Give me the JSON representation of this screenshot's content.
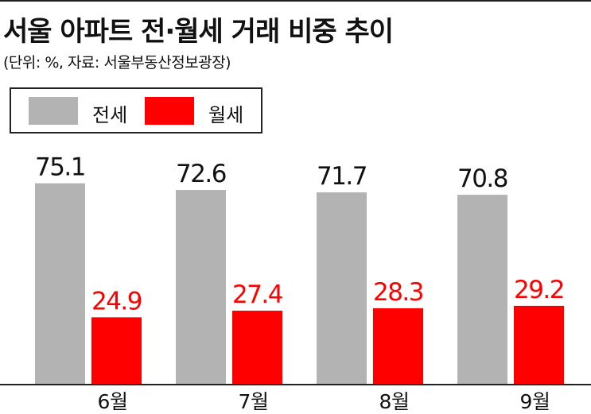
{
  "title": "서울 아파트 전·월세 거래 비중 추이",
  "subtitle": "(단위: %, 자료: 서울부동산정보광장)",
  "colors": {
    "jeonse": "#b3b3b3",
    "wolse": "#ff0000",
    "text": "#111111",
    "wolse_label": "#ff0000"
  },
  "legend": {
    "jeonse_label": "전세",
    "wolse_label": "월세"
  },
  "chart_data": {
    "type": "bar",
    "categories": [
      "6월",
      "7월",
      "8월",
      "9월"
    ],
    "series": [
      {
        "name": "전세",
        "values": [
          75.1,
          72.6,
          71.7,
          70.8
        ]
      },
      {
        "name": "월세",
        "values": [
          24.9,
          27.4,
          28.3,
          29.2
        ]
      }
    ],
    "title": "서울 아파트 전·월세 거래 비중 추이",
    "ylim": [
      0,
      100
    ],
    "grid": false,
    "legend_position": "top-left"
  }
}
